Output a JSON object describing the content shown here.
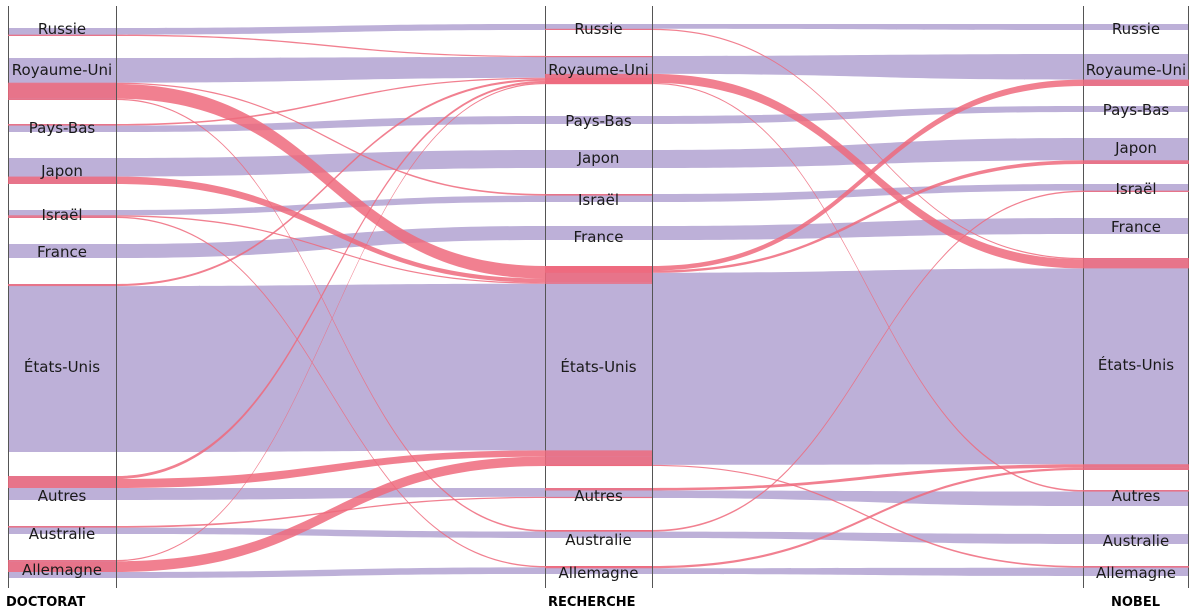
{
  "colors": {
    "same_country": "#bdb0d8",
    "moved": "#ef6a7c",
    "axis": "#555555",
    "background": "#ffffff"
  },
  "axes": [
    {
      "key": "doctorat",
      "label": "DOCTORAT"
    },
    {
      "key": "recherche",
      "label": "RECHERCHE"
    },
    {
      "key": "nobel",
      "label": "NOBEL"
    }
  ],
  "countries": [
    "Russie",
    "Royaume-Uni",
    "Pays-Bas",
    "Japon",
    "Israël",
    "France",
    "États-Unis",
    "Autres",
    "Australie",
    "Allemagne"
  ],
  "diagram": {
    "flows_doctorat_to_recherche": [
      {
        "from": "Russie",
        "to": "Russie",
        "value": 5,
        "same": true
      },
      {
        "from": "Russie",
        "to": "Royaume-Uni",
        "value": 1,
        "same": false
      },
      {
        "from": "Royaume-Uni",
        "to": "Royaume-Uni",
        "value": 20,
        "same": true
      },
      {
        "from": "Royaume-Uni",
        "to": "États-Unis",
        "value": 12,
        "same": false
      },
      {
        "from": "Royaume-Uni",
        "to": "Israël",
        "value": 1,
        "same": false
      },
      {
        "from": "Royaume-Uni",
        "to": "Australie",
        "value": 1,
        "same": false
      },
      {
        "from": "Pays-Bas",
        "to": "Pays-Bas",
        "value": 4,
        "same": true
      },
      {
        "from": "Pays-Bas",
        "to": "Royaume-Uni",
        "value": 1,
        "same": false
      },
      {
        "from": "Japon",
        "to": "Japon",
        "value": 10,
        "same": true
      },
      {
        "from": "Japon",
        "to": "États-Unis",
        "value": 4,
        "same": false
      },
      {
        "from": "Israël",
        "to": "Israël",
        "value": 4,
        "same": true
      },
      {
        "from": "Israël",
        "to": "États-Unis",
        "value": 1,
        "same": false
      },
      {
        "from": "Israël",
        "to": "Allemagne",
        "value": 1,
        "same": false
      },
      {
        "from": "France",
        "to": "France",
        "value": 9,
        "same": true
      },
      {
        "from": "États-Unis",
        "to": "États-Unis",
        "value": 160,
        "same": true
      },
      {
        "from": "États-Unis",
        "to": "Royaume-Uni",
        "value": 2,
        "same": false
      },
      {
        "from": "Autres",
        "to": "Autres",
        "value": 8,
        "same": true
      },
      {
        "from": "Autres",
        "to": "États-Unis",
        "value": 6,
        "same": false
      },
      {
        "from": "Autres",
        "to": "Royaume-Uni",
        "value": 2,
        "same": false
      },
      {
        "from": "Australie",
        "to": "Australie",
        "value": 4,
        "same": true
      },
      {
        "from": "Australie",
        "to": "Autres",
        "value": 1,
        "same": false
      },
      {
        "from": "Allemagne",
        "to": "Allemagne",
        "value": 5,
        "same": true
      },
      {
        "from": "Allemagne",
        "to": "États-Unis",
        "value": 9,
        "same": false
      },
      {
        "from": "Allemagne",
        "to": "Royaume-Uni",
        "value": 1,
        "same": false
      }
    ],
    "flows_recherche_to_nobel": [
      {
        "from": "Russie",
        "to": "Russie",
        "value": 4,
        "same": true
      },
      {
        "from": "Russie",
        "to": "États-Unis",
        "value": 1,
        "same": false
      },
      {
        "from": "Royaume-Uni",
        "to": "Royaume-Uni",
        "value": 16,
        "same": true
      },
      {
        "from": "Royaume-Uni",
        "to": "États-Unis",
        "value": 8,
        "same": false
      },
      {
        "from": "Royaume-Uni",
        "to": "Autres",
        "value": 1,
        "same": false
      },
      {
        "from": "Pays-Bas",
        "to": "Pays-Bas",
        "value": 4,
        "same": true
      },
      {
        "from": "Japon",
        "to": "Japon",
        "value": 12,
        "same": true
      },
      {
        "from": "Israël",
        "to": "Israël",
        "value": 5,
        "same": true
      },
      {
        "from": "France",
        "to": "France",
        "value": 10,
        "same": true
      },
      {
        "from": "États-Unis",
        "to": "États-Unis",
        "value": 170,
        "same": true
      },
      {
        "from": "États-Unis",
        "to": "Royaume-Uni",
        "value": 4,
        "same": false
      },
      {
        "from": "États-Unis",
        "to": "Japon",
        "value": 2,
        "same": false
      },
      {
        "from": "États-Unis",
        "to": "Allemagne",
        "value": 1,
        "same": false
      },
      {
        "from": "Autres",
        "to": "Autres",
        "value": 9,
        "same": true
      },
      {
        "from": "Autres",
        "to": "États-Unis",
        "value": 3,
        "same": false
      },
      {
        "from": "Australie",
        "to": "Australie",
        "value": 4,
        "same": true
      },
      {
        "from": "Australie",
        "to": "Israël",
        "value": 1,
        "same": false
      },
      {
        "from": "Allemagne",
        "to": "Allemagne",
        "value": 5,
        "same": true
      },
      {
        "from": "Allemagne",
        "to": "États-Unis",
        "value": 2,
        "same": false
      }
    ]
  }
}
